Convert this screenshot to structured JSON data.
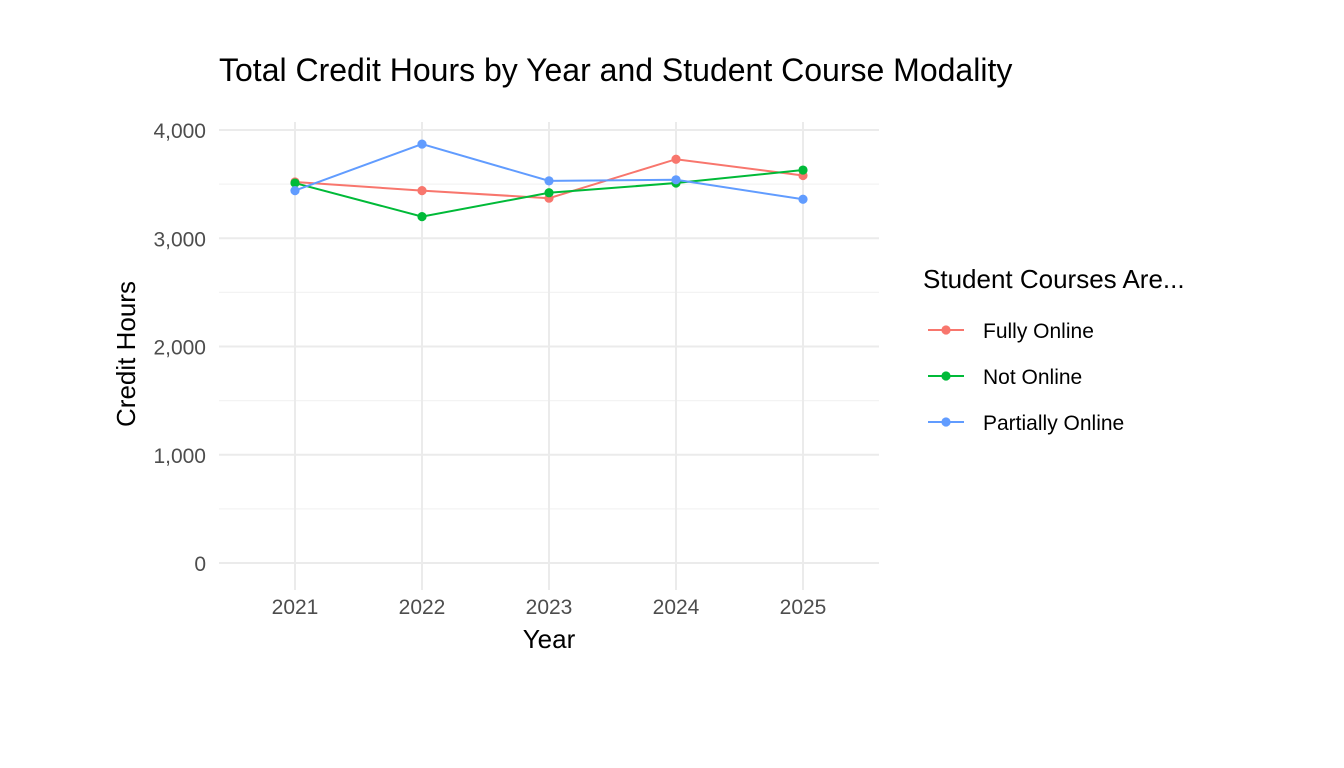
{
  "chart_data": {
    "type": "line",
    "title": "Total Credit Hours by Year and Student Course Modality",
    "xlabel": "Year",
    "ylabel": "Credit Hours",
    "categories": [
      "2021",
      "2022",
      "2023",
      "2024",
      "2025"
    ],
    "ylim": [
      -250,
      4000
    ],
    "yticks": [
      0,
      1000,
      2000,
      3000,
      4000
    ],
    "ytick_labels": [
      "0",
      "1,000",
      "2,000",
      "3,000",
      "4,000"
    ],
    "grid": true,
    "legend": {
      "title": "Student Courses Are...",
      "position": "right"
    },
    "series": [
      {
        "name": "Fully Online",
        "color": "#F8766D",
        "values": [
          3520,
          3440,
          3370,
          3730,
          3580
        ]
      },
      {
        "name": "Not Online",
        "color": "#00BA38",
        "values": [
          3510,
          3200,
          3420,
          3510,
          3630
        ]
      },
      {
        "name": "Partially Online",
        "color": "#619CFF",
        "values": [
          3440,
          3870,
          3530,
          3540,
          3360
        ]
      }
    ]
  }
}
